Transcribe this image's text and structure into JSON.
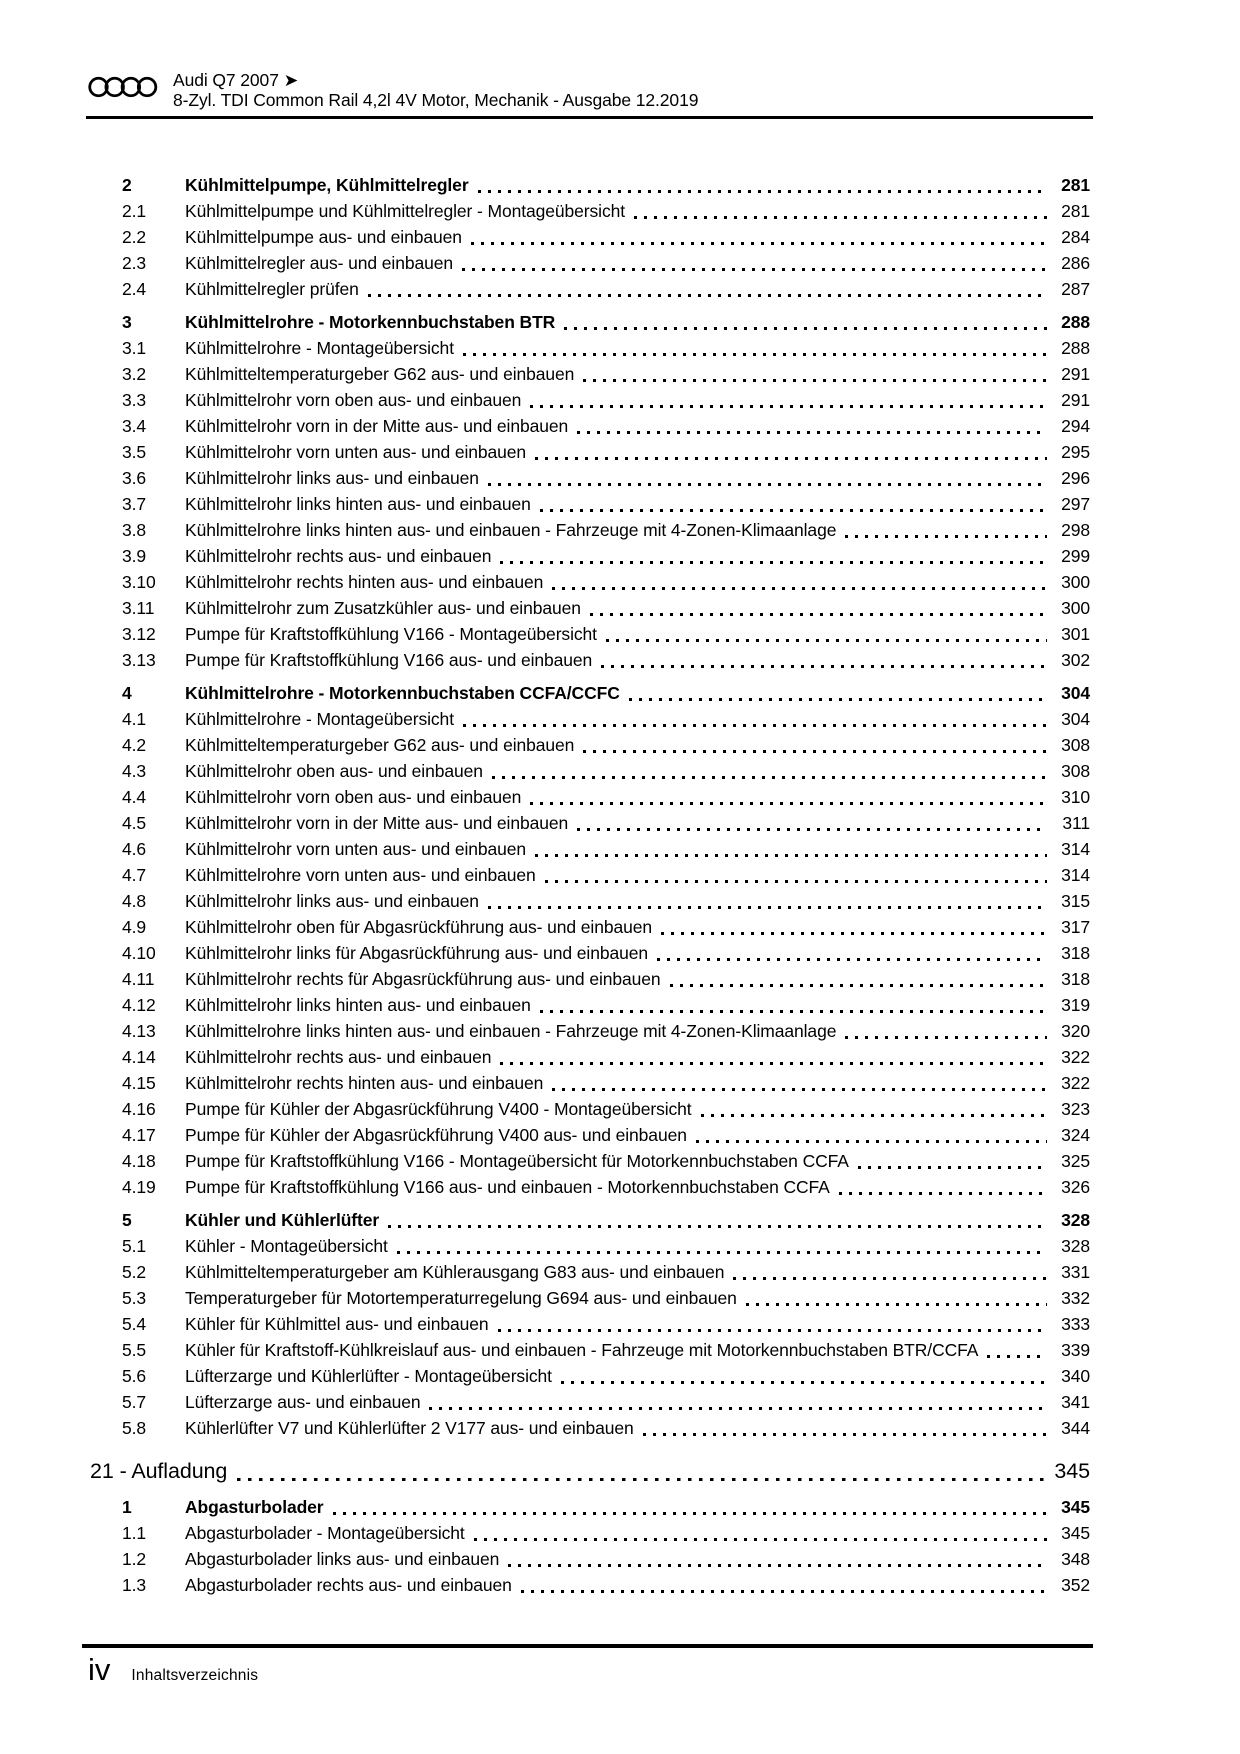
{
  "colors": {
    "text": "#000000",
    "background": "#ffffff",
    "rule": "#000000"
  },
  "header": {
    "logo_icon": "audi-rings-icon",
    "line1": "Audi Q7 2007 ➤",
    "line2": "8-Zyl. TDI Common Rail 4,2l 4V Motor, Mechanik - Ausgabe 12.2019"
  },
  "toc": {
    "chapters": [
      {
        "title": "",
        "page": "",
        "entries": [
          {
            "num": "2",
            "title": "Kühlmittelpumpe, Kühlmittelregler",
            "page": "281",
            "bold": true
          },
          {
            "num": "2.1",
            "title": "Kühlmittelpumpe und Kühlmittelregler - Montageübersicht",
            "page": "281"
          },
          {
            "num": "2.2",
            "title": "Kühlmittelpumpe aus- und einbauen",
            "page": "284"
          },
          {
            "num": "2.3",
            "title": "Kühlmittelregler aus- und einbauen",
            "page": "286"
          },
          {
            "num": "2.4",
            "title": "Kühlmittelregler prüfen",
            "page": "287"
          },
          {
            "num": "3",
            "title": "Kühlmittelrohre - Motorkennbuchstaben BTR",
            "page": "288",
            "bold": true
          },
          {
            "num": "3.1",
            "title": "Kühlmittelrohre - Montageübersicht",
            "page": "288"
          },
          {
            "num": "3.2",
            "title": "Kühlmitteltemperaturgeber G62 aus- und einbauen",
            "page": "291"
          },
          {
            "num": "3.3",
            "title": "Kühlmittelrohr vorn oben aus- und einbauen",
            "page": "291"
          },
          {
            "num": "3.4",
            "title": "Kühlmittelrohr vorn in der Mitte aus- und einbauen",
            "page": "294"
          },
          {
            "num": "3.5",
            "title": "Kühlmittelrohr vorn unten aus- und einbauen",
            "page": "295"
          },
          {
            "num": "3.6",
            "title": "Kühlmittelrohr links aus- und einbauen",
            "page": "296"
          },
          {
            "num": "3.7",
            "title": "Kühlmittelrohr links hinten aus- und einbauen",
            "page": "297"
          },
          {
            "num": "3.8",
            "title": "Kühlmittelrohre links hinten aus- und einbauen - Fahrzeuge mit 4-Zonen-Klimaanlage",
            "page": "298"
          },
          {
            "num": "3.9",
            "title": "Kühlmittelrohr rechts aus- und einbauen",
            "page": "299"
          },
          {
            "num": "3.10",
            "title": "Kühlmittelrohr rechts hinten aus- und einbauen",
            "page": "300"
          },
          {
            "num": "3.11",
            "title": "Kühlmittelrohr zum Zusatzkühler aus- und einbauen",
            "page": "300"
          },
          {
            "num": "3.12",
            "title": "Pumpe für Kraftstoffkühlung V166 - Montageübersicht",
            "page": "301"
          },
          {
            "num": "3.13",
            "title": "Pumpe für Kraftstoffkühlung V166 aus- und einbauen",
            "page": "302"
          },
          {
            "num": "4",
            "title": "Kühlmittelrohre - Motorkennbuchstaben CCFA/CCFC",
            "page": "304",
            "bold": true
          },
          {
            "num": "4.1",
            "title": "Kühlmittelrohre - Montageübersicht",
            "page": "304"
          },
          {
            "num": "4.2",
            "title": "Kühlmitteltemperaturgeber G62 aus- und einbauen",
            "page": "308"
          },
          {
            "num": "4.3",
            "title": "Kühlmittelrohr oben aus- und einbauen",
            "page": "308"
          },
          {
            "num": "4.4",
            "title": "Kühlmittelrohr vorn oben aus- und einbauen",
            "page": "310"
          },
          {
            "num": "4.5",
            "title": "Kühlmittelrohr vorn in der Mitte aus- und einbauen",
            "page": "311"
          },
          {
            "num": "4.6",
            "title": "Kühlmittelrohr vorn unten aus- und einbauen",
            "page": "314"
          },
          {
            "num": "4.7",
            "title": "Kühlmittelrohre vorn unten aus- und einbauen",
            "page": "314"
          },
          {
            "num": "4.8",
            "title": "Kühlmittelrohr links aus- und einbauen",
            "page": "315"
          },
          {
            "num": "4.9",
            "title": "Kühlmittelrohr oben für Abgasrückführung aus- und einbauen",
            "page": "317"
          },
          {
            "num": "4.10",
            "title": "Kühlmittelrohr links für Abgasrückführung aus- und einbauen",
            "page": "318"
          },
          {
            "num": "4.11",
            "title": "Kühlmittelrohr rechts für Abgasrückführung aus- und einbauen",
            "page": "318"
          },
          {
            "num": "4.12",
            "title": "Kühlmittelrohr links hinten aus- und einbauen",
            "page": "319"
          },
          {
            "num": "4.13",
            "title": "Kühlmittelrohre links hinten aus- und einbauen - Fahrzeuge mit 4-Zonen-Klimaanlage",
            "page": "320"
          },
          {
            "num": "4.14",
            "title": "Kühlmittelrohr rechts aus- und einbauen",
            "page": "322"
          },
          {
            "num": "4.15",
            "title": "Kühlmittelrohr rechts hinten aus- und einbauen",
            "page": "322"
          },
          {
            "num": "4.16",
            "title": "Pumpe für Kühler der Abgasrückführung V400 - Montageübersicht",
            "page": "323"
          },
          {
            "num": "4.17",
            "title": "Pumpe für Kühler der Abgasrückführung V400 aus- und einbauen",
            "page": "324"
          },
          {
            "num": "4.18",
            "title": "Pumpe für Kraftstoffkühlung V166 - Montageübersicht für Motorkennbuchstaben CCFA",
            "page": "325"
          },
          {
            "num": "4.19",
            "title": "Pumpe für Kraftstoffkühlung V166 aus- und einbauen - Motorkennbuchstaben CCFA",
            "page": "326"
          },
          {
            "num": "5",
            "title": "Kühler und Kühlerlüfter",
            "page": "328",
            "bold": true
          },
          {
            "num": "5.1",
            "title": "Kühler - Montageübersicht",
            "page": "328"
          },
          {
            "num": "5.2",
            "title": "Kühlmitteltemperaturgeber am Kühlerausgang G83 aus- und einbauen",
            "page": "331"
          },
          {
            "num": "5.3",
            "title": "Temperaturgeber für Motortemperaturregelung G694 aus- und einbauen",
            "page": "332"
          },
          {
            "num": "5.4",
            "title": "Kühler für Kühlmittel aus- und einbauen",
            "page": "333"
          },
          {
            "num": "5.5",
            "title": "Kühler für Kraftstoff-Kühlkreislauf aus- und einbauen - Fahrzeuge mit Motorkennbuchstaben BTR/CCFA",
            "page": "339"
          },
          {
            "num": "5.6",
            "title": "Lüfterzarge und Kühlerlüfter - Montageübersicht",
            "page": "340"
          },
          {
            "num": "5.7",
            "title": "Lüfterzarge aus- und einbauen",
            "page": "341"
          },
          {
            "num": "5.8",
            "title": "Kühlerlüfter V7 und Kühlerlüfter 2 V177 aus- und einbauen",
            "page": "344"
          }
        ]
      },
      {
        "title": "21 - Aufladung",
        "page": "345",
        "entries": [
          {
            "num": "1",
            "title": "Abgasturbolader",
            "page": "345",
            "bold": true
          },
          {
            "num": "1.1",
            "title": "Abgasturbolader - Montageübersicht",
            "page": "345"
          },
          {
            "num": "1.2",
            "title": "Abgasturbolader links aus- und einbauen",
            "page": "348"
          },
          {
            "num": "1.3",
            "title": "Abgasturbolader rechts aus- und einbauen",
            "page": "352"
          }
        ]
      }
    ]
  },
  "footer": {
    "page_label": "iv",
    "text": "Inhaltsverzeichnis"
  }
}
